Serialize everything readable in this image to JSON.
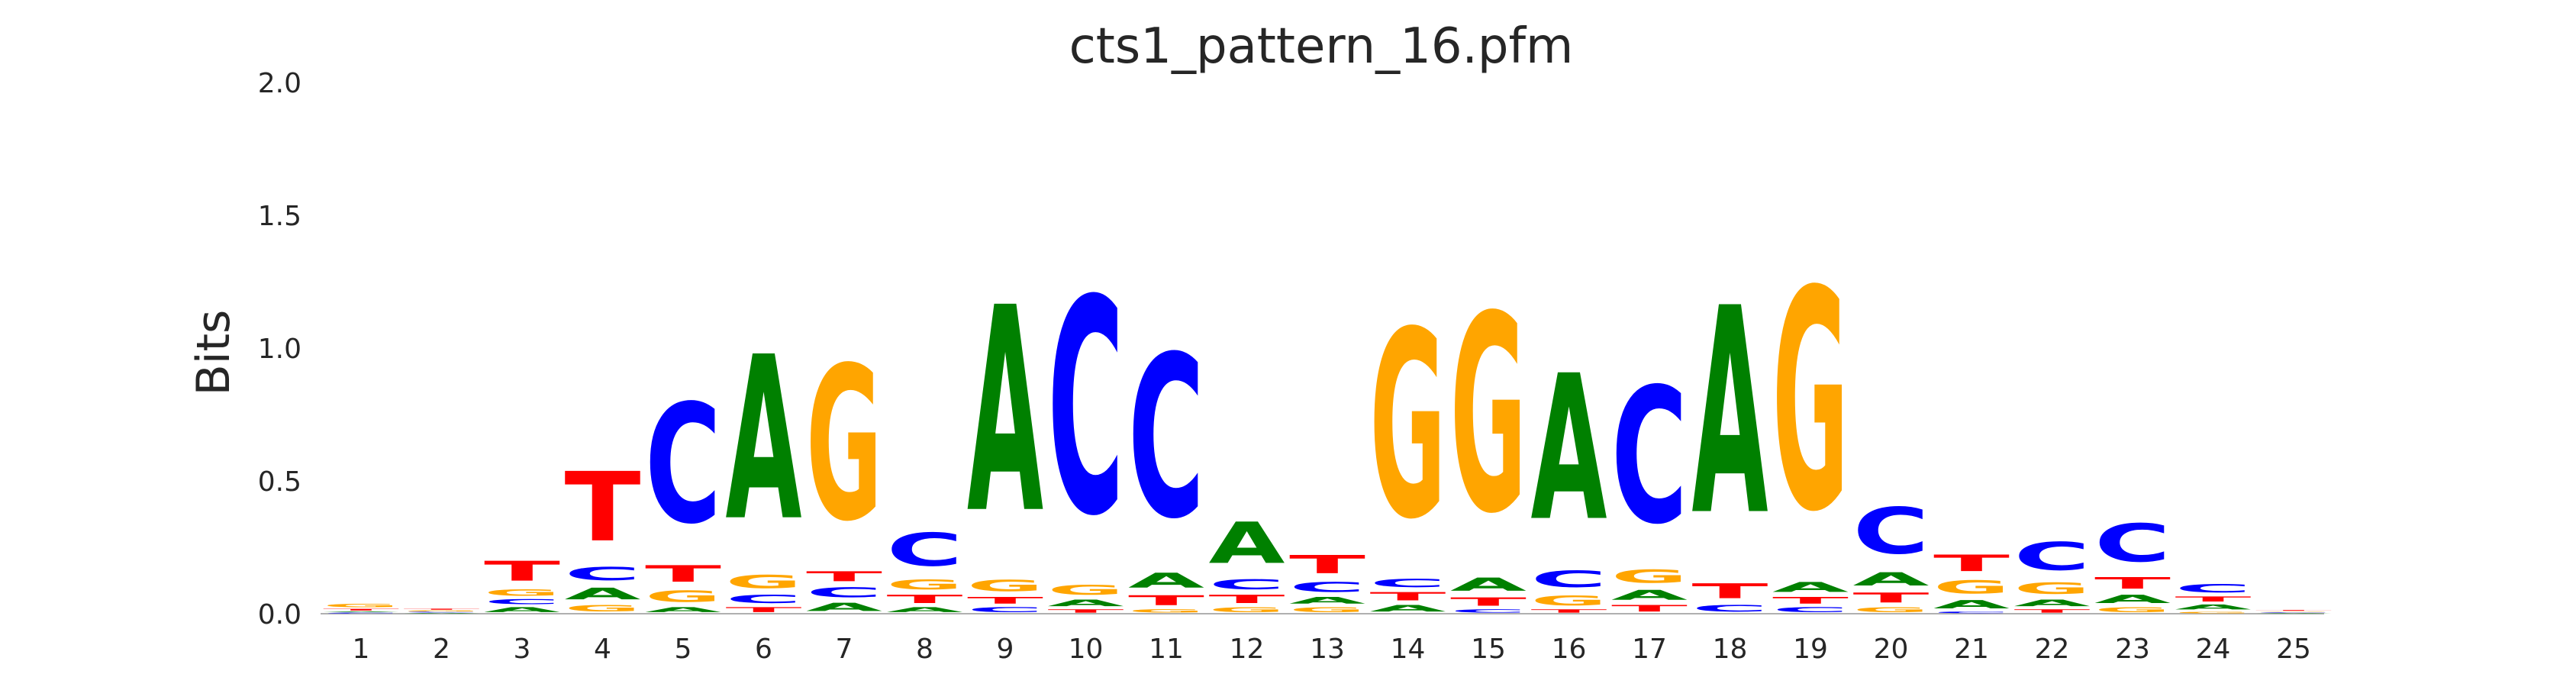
{
  "chart_data": {
    "type": "sequence-logo",
    "title": "cts1_pattern_16.pfm",
    "ylabel": "Bits",
    "xlabel": "",
    "ylim": [
      0,
      2.0
    ],
    "yticks": [
      "0.0",
      "0.5",
      "1.0",
      "1.5",
      "2.0"
    ],
    "grid": false,
    "colors": {
      "A": "#008000",
      "C": "#0000ff",
      "G": "#ffa500",
      "T": "#ff0000"
    },
    "positions": [
      {
        "pos": "1",
        "stack": [
          [
            "C",
            0.005
          ],
          [
            "A",
            0.005
          ],
          [
            "T",
            0.01
          ],
          [
            "G",
            0.02
          ]
        ]
      },
      {
        "pos": "2",
        "stack": [
          [
            "A",
            0.004
          ],
          [
            "C",
            0.004
          ],
          [
            "G",
            0.006
          ],
          [
            "T",
            0.006
          ]
        ]
      },
      {
        "pos": "3",
        "stack": [
          [
            "A",
            0.03
          ],
          [
            "C",
            0.03
          ],
          [
            "G",
            0.04
          ],
          [
            "T",
            0.12
          ]
        ]
      },
      {
        "pos": "4",
        "stack": [
          [
            "G",
            0.04
          ],
          [
            "A",
            0.07
          ],
          [
            "C",
            0.08
          ],
          [
            "T",
            0.42
          ]
        ]
      },
      {
        "pos": "5",
        "stack": [
          [
            "A",
            0.03
          ],
          [
            "G",
            0.07
          ],
          [
            "T",
            0.1
          ],
          [
            "C",
            0.72
          ]
        ]
      },
      {
        "pos": "6",
        "stack": [
          [
            "T",
            0.03
          ],
          [
            "C",
            0.05
          ],
          [
            "G",
            0.08
          ],
          [
            "A",
            0.99
          ]
        ]
      },
      {
        "pos": "7",
        "stack": [
          [
            "A",
            0.05
          ],
          [
            "C",
            0.06
          ],
          [
            "T",
            0.06
          ],
          [
            "G",
            0.93
          ]
        ]
      },
      {
        "pos": "8",
        "stack": [
          [
            "A",
            0.03
          ],
          [
            "T",
            0.05
          ],
          [
            "G",
            0.06
          ],
          [
            "C",
            0.2
          ]
        ]
      },
      {
        "pos": "9",
        "stack": [
          [
            "C",
            0.03
          ],
          [
            "T",
            0.04
          ],
          [
            "G",
            0.07
          ],
          [
            "A",
            1.24
          ]
        ]
      },
      {
        "pos": "10",
        "stack": [
          [
            "T",
            0.02
          ],
          [
            "A",
            0.04
          ],
          [
            "G",
            0.06
          ],
          [
            "C",
            1.3
          ]
        ]
      },
      {
        "pos": "11",
        "stack": [
          [
            "G",
            0.02
          ],
          [
            "T",
            0.06
          ],
          [
            "A",
            0.09
          ],
          [
            "C",
            0.98
          ]
        ]
      },
      {
        "pos": "12",
        "stack": [
          [
            "G",
            0.03
          ],
          [
            "T",
            0.05
          ],
          [
            "C",
            0.06
          ],
          [
            "A",
            0.25
          ]
        ]
      },
      {
        "pos": "13",
        "stack": [
          [
            "G",
            0.03
          ],
          [
            "A",
            0.04
          ],
          [
            "C",
            0.06
          ],
          [
            "T",
            0.11
          ]
        ]
      },
      {
        "pos": "14",
        "stack": [
          [
            "A",
            0.04
          ],
          [
            "T",
            0.05
          ],
          [
            "C",
            0.05
          ],
          [
            "G",
            1.13
          ]
        ]
      },
      {
        "pos": "15",
        "stack": [
          [
            "C",
            0.02
          ],
          [
            "T",
            0.05
          ],
          [
            "A",
            0.08
          ],
          [
            "G",
            1.19
          ]
        ]
      },
      {
        "pos": "16",
        "stack": [
          [
            "T",
            0.02
          ],
          [
            "G",
            0.06
          ],
          [
            "C",
            0.1
          ],
          [
            "A",
            0.88
          ]
        ]
      },
      {
        "pos": "17",
        "stack": [
          [
            "T",
            0.04
          ],
          [
            "A",
            0.06
          ],
          [
            "G",
            0.08
          ],
          [
            "C",
            0.82
          ]
        ]
      },
      {
        "pos": "18",
        "stack": [
          [
            "C",
            0.04
          ],
          [
            "T",
            0.09
          ],
          [
            "A",
            1.25
          ]
        ]
      },
      {
        "pos": "19",
        "stack": [
          [
            "C",
            0.03
          ],
          [
            "T",
            0.04
          ],
          [
            "A",
            0.06
          ],
          [
            "G",
            1.33
          ]
        ]
      },
      {
        "pos": "20",
        "stack": [
          [
            "G",
            0.03
          ],
          [
            "T",
            0.06
          ],
          [
            "A",
            0.08
          ],
          [
            "C",
            0.28
          ]
        ]
      },
      {
        "pos": "21",
        "stack": [
          [
            "C",
            0.01
          ],
          [
            "A",
            0.05
          ],
          [
            "G",
            0.08
          ],
          [
            "T",
            0.1
          ]
        ]
      },
      {
        "pos": "22",
        "stack": [
          [
            "T",
            0.02
          ],
          [
            "A",
            0.04
          ],
          [
            "G",
            0.07
          ],
          [
            "C",
            0.17
          ]
        ]
      },
      {
        "pos": "23",
        "stack": [
          [
            "G",
            0.03
          ],
          [
            "A",
            0.05
          ],
          [
            "T",
            0.07
          ],
          [
            "C",
            0.23
          ]
        ]
      },
      {
        "pos": "24",
        "stack": [
          [
            "G",
            0.01
          ],
          [
            "A",
            0.03
          ],
          [
            "T",
            0.03
          ],
          [
            "C",
            0.05
          ]
        ]
      },
      {
        "pos": "25",
        "stack": [
          [
            "A",
            0.003
          ],
          [
            "C",
            0.003
          ],
          [
            "G",
            0.004
          ],
          [
            "T",
            0.005
          ]
        ]
      }
    ]
  }
}
